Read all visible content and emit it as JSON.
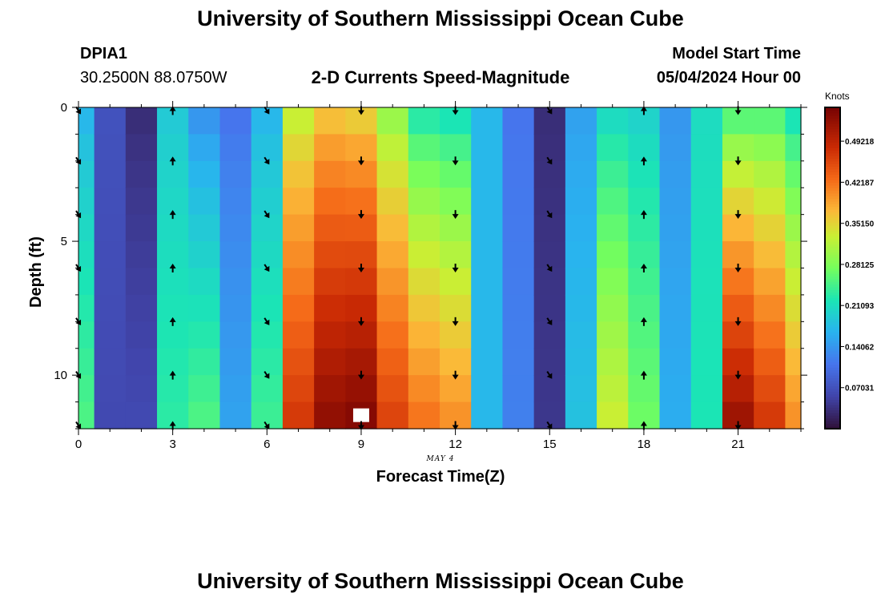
{
  "header": {
    "title": "University of Southern Mississippi Ocean Cube",
    "station": "DPIA1",
    "coords": "30.2500N  88.0750W",
    "subtitle": "2-D Currents Speed-Magnitude",
    "model_label": "Model Start Time",
    "model_time": "05/04/2024 Hour 00"
  },
  "footer": {
    "title": "University of Southern Mississippi Ocean Cube"
  },
  "chart_data": {
    "type": "heatmap",
    "title": "2-D Currents Speed-Magnitude",
    "xlabel": "Forecast Time(Z)",
    "ylabel": "Depth (ft)",
    "x_date_label": "MAY 4",
    "x_ticks": [
      0,
      3,
      6,
      9,
      12,
      15,
      18,
      21
    ],
    "x_tick_labels": [
      "0",
      "3",
      "6",
      "9",
      "12",
      "15",
      "18",
      "21"
    ],
    "y_ticks": [
      0,
      5,
      10
    ],
    "y_tick_labels": [
      "0",
      "5",
      "10"
    ],
    "xlim": [
      0,
      23
    ],
    "ylim": [
      0,
      12
    ],
    "colorbar": {
      "label": "Knots",
      "min": 0,
      "max": 0.55,
      "ticks": [
        0.07031,
        0.14062,
        0.21093,
        0.28125,
        0.3515,
        0.42187,
        0.49218
      ],
      "tick_labels": [
        "0.07031",
        "0.14062",
        "0.21093",
        "0.28125",
        "0.35150",
        "0.42187",
        "0.49218"
      ]
    },
    "hour_profiles": [
      {
        "hour": 0,
        "top": 0.17,
        "bottom": 0.25
      },
      {
        "hour": 1,
        "top": 0.07,
        "bottom": 0.06
      },
      {
        "hour": 2,
        "top": 0.03,
        "bottom": 0.06
      },
      {
        "hour": 3,
        "top": 0.19,
        "bottom": 0.23
      },
      {
        "hour": 4,
        "top": 0.14,
        "bottom": 0.25
      },
      {
        "hour": 5,
        "top": 0.11,
        "bottom": 0.15
      },
      {
        "hour": 6,
        "top": 0.17,
        "bottom": 0.24
      },
      {
        "hour": 7,
        "top": 0.33,
        "bottom": 0.47
      },
      {
        "hour": 8,
        "top": 0.37,
        "bottom": 0.53
      },
      {
        "hour": 9,
        "top": 0.36,
        "bottom": 0.54
      },
      {
        "hour": 10,
        "top": 0.3,
        "bottom": 0.46
      },
      {
        "hour": 11,
        "top": 0.23,
        "bottom": 0.42
      },
      {
        "hour": 12,
        "top": 0.22,
        "bottom": 0.4
      },
      {
        "hour": 13,
        "top": 0.17,
        "bottom": 0.17
      },
      {
        "hour": 14,
        "top": 0.11,
        "bottom": 0.12
      },
      {
        "hour": 15,
        "top": 0.03,
        "bottom": 0.04
      },
      {
        "hour": 16,
        "top": 0.15,
        "bottom": 0.18
      },
      {
        "hour": 17,
        "top": 0.21,
        "bottom": 0.33
      },
      {
        "hour": 18,
        "top": 0.2,
        "bottom": 0.27
      },
      {
        "hour": 19,
        "top": 0.14,
        "bottom": 0.16
      },
      {
        "hour": 20,
        "top": 0.21,
        "bottom": 0.22
      },
      {
        "hour": 21,
        "top": 0.26,
        "bottom": 0.52
      },
      {
        "hour": 22,
        "top": 0.26,
        "bottom": 0.47
      },
      {
        "hour": 23,
        "top": 0.22,
        "bottom": 0.4
      }
    ],
    "missing_cells": [
      {
        "hour": 9,
        "depth_ft": 11.75
      }
    ],
    "arrows": {
      "depths_ft": [
        0,
        2,
        4,
        6,
        8,
        10,
        12
      ],
      "columns": [
        {
          "hour": 0,
          "direction": "south-southeast"
        },
        {
          "hour": 3,
          "direction": "north"
        },
        {
          "hour": 6,
          "direction": "south-southeast"
        },
        {
          "hour": 9,
          "direction": "south"
        },
        {
          "hour": 12,
          "direction": "south"
        },
        {
          "hour": 15,
          "direction": "south-southeast"
        },
        {
          "hour": 18,
          "direction": "north"
        },
        {
          "hour": 21,
          "direction": "south"
        }
      ]
    }
  }
}
